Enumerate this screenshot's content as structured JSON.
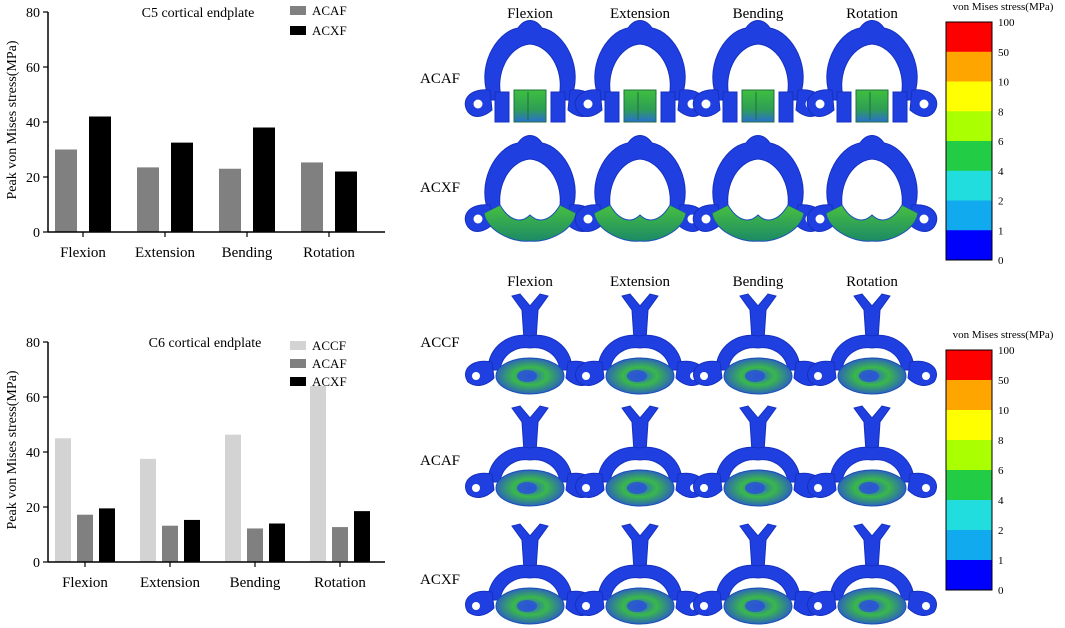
{
  "chart_data": [
    {
      "type": "bar",
      "title": "C5 cortical endplate",
      "ylabel": "Peak von Mises stress(MPa)",
      "xlabel": "",
      "ylim": [
        0,
        80
      ],
      "yticks": [
        0,
        20,
        40,
        60,
        80
      ],
      "categories": [
        "Flexion",
        "Extension",
        "Bending",
        "Rotation"
      ],
      "legend_position": "top-right",
      "series": [
        {
          "name": "ACAF",
          "color": "#808080",
          "values": [
            30,
            23.5,
            23,
            25.3
          ]
        },
        {
          "name": "ACXF",
          "color": "#000000",
          "values": [
            42,
            32.5,
            38,
            22
          ]
        }
      ]
    },
    {
      "type": "bar",
      "title": "C6 cortical endplate",
      "ylabel": "Peak von Mises stress(MPa)",
      "xlabel": "",
      "ylim": [
        0,
        80
      ],
      "yticks": [
        0,
        20,
        40,
        60,
        80
      ],
      "categories": [
        "Flexion",
        "Extension",
        "Bending",
        "Rotation"
      ],
      "legend_position": "top-right",
      "series": [
        {
          "name": "ACCF",
          "color": "#d3d3d3",
          "values": [
            45,
            37.5,
            46.3,
            64
          ]
        },
        {
          "name": "ACAF",
          "color": "#808080",
          "values": [
            17.2,
            13.2,
            12.2,
            12.7
          ]
        },
        {
          "name": "ACXF",
          "color": "#000000",
          "values": [
            19.5,
            15.3,
            14,
            18.5
          ]
        }
      ]
    }
  ],
  "fem": {
    "top": {
      "columns": [
        "Flexion",
        "Extension",
        "Bending",
        "Rotation"
      ],
      "rows": [
        "ACAF",
        "ACXF"
      ],
      "colorbar_title": "von Mises stress(MPa)"
    },
    "bottom": {
      "columns": [
        "Flexion",
        "Extension",
        "Bending",
        "Rotation"
      ],
      "rows": [
        "ACCF",
        "ACAF",
        "ACXF"
      ],
      "colorbar_title": "von Mises stress(MPa)"
    },
    "colorbar_ticks": [
      "100",
      "50",
      "10",
      "8",
      "6",
      "4",
      "2",
      "1",
      "0"
    ],
    "colorbar_colors": [
      "#ff0000",
      "#ffa500",
      "#ffff00",
      "#aaff00",
      "#22cc44",
      "#22dddd",
      "#11aaee",
      "#0000ff"
    ]
  }
}
